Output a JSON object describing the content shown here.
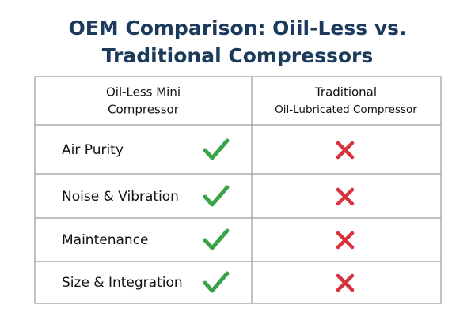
{
  "header": {
    "title": [
      "OEM Comparison: Oiil-Less vs.",
      "Traditional Compressors"
    ]
  },
  "table": {
    "columns": [
      [
        "Oil-Less Mini",
        "Compressor"
      ],
      [
        "Traditional",
        "Oil-Lubricated Compressor"
      ]
    ],
    "rows": [
      "Air Purity",
      "Noise & Vibration",
      "Maintenance",
      "Size & Integration"
    ]
  }
}
